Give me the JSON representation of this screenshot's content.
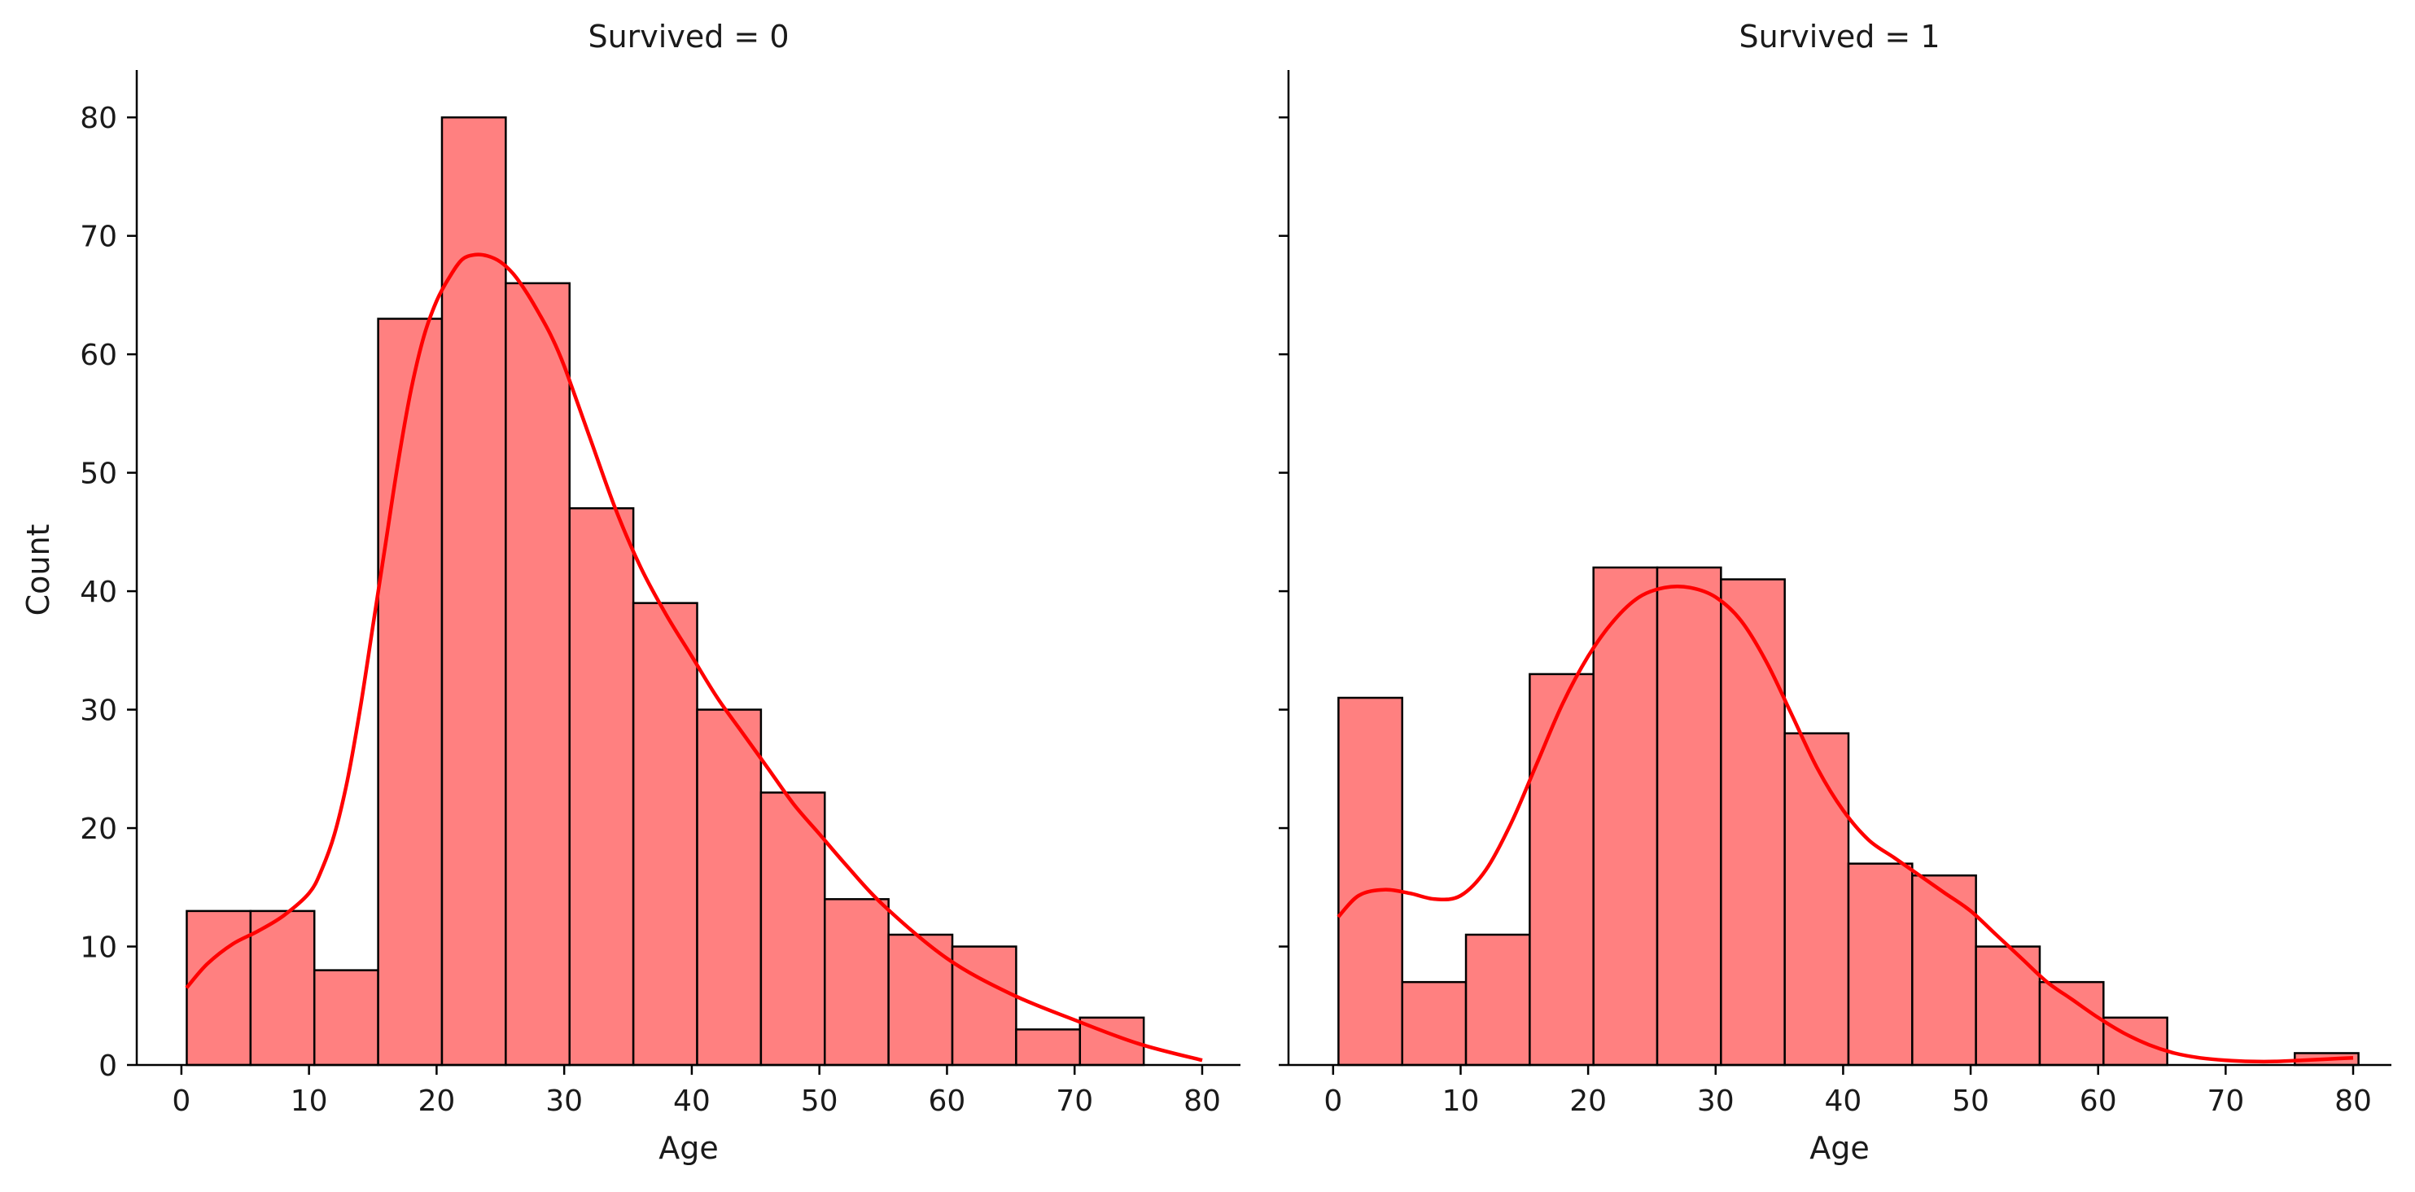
{
  "chart_data": [
    {
      "type": "bar",
      "title": "Survived = 0",
      "xlabel": "Age",
      "ylabel": "Count",
      "xlim": [
        -3.5,
        83
      ],
      "ylim": [
        0,
        84
      ],
      "xticks": [
        0,
        10,
        20,
        30,
        40,
        50,
        60,
        70,
        80
      ],
      "yticks": [
        0,
        10,
        20,
        30,
        40,
        50,
        60,
        70,
        80
      ],
      "bins": [
        [
          0.42,
          5.42
        ],
        [
          5.42,
          10.42
        ],
        [
          10.42,
          15.42
        ],
        [
          15.42,
          20.42
        ],
        [
          20.42,
          25.42
        ],
        [
          25.42,
          30.42
        ],
        [
          30.42,
          35.42
        ],
        [
          35.42,
          40.42
        ],
        [
          40.42,
          45.42
        ],
        [
          45.42,
          50.42
        ],
        [
          50.42,
          55.42
        ],
        [
          55.42,
          60.42
        ],
        [
          60.42,
          65.42
        ],
        [
          65.42,
          70.42
        ],
        [
          70.42,
          75.42
        ]
      ],
      "values": [
        13,
        13,
        8,
        63,
        80,
        66,
        47,
        39,
        30,
        23,
        14,
        11,
        10,
        3,
        4
      ],
      "kde": {
        "x": [
          0.4,
          2,
          4,
          6,
          8,
          10,
          11,
          12,
          13,
          14,
          15,
          16,
          17,
          18,
          19,
          20,
          21,
          22,
          23,
          24,
          25,
          26,
          27,
          28,
          29,
          30,
          32,
          34,
          36,
          38,
          40,
          42,
          44,
          46,
          48,
          50,
          52,
          55,
          60,
          65,
          70,
          75,
          80
        ],
        "y": [
          6.5,
          8.5,
          10.2,
          11.3,
          12.6,
          14.5,
          16.5,
          19.5,
          24,
          30,
          37,
          44,
          51,
          57,
          61.5,
          64.5,
          66.5,
          68,
          68.4,
          68.3,
          67.8,
          66.8,
          65.3,
          63.5,
          61.5,
          59,
          53,
          47,
          42,
          38,
          34.5,
          31,
          28,
          25,
          22,
          19.5,
          17,
          13.5,
          9,
          6,
          3.8,
          1.8,
          0.4
        ]
      }
    },
    {
      "type": "bar",
      "title": "Survived = 1",
      "xlabel": "Age",
      "ylabel": "",
      "xlim": [
        -3.5,
        83
      ],
      "ylim": [
        0,
        84
      ],
      "xticks": [
        0,
        10,
        20,
        30,
        40,
        50,
        60,
        70,
        80
      ],
      "yticks": [
        0,
        10,
        20,
        30,
        40,
        50,
        60,
        70,
        80
      ],
      "bins": [
        [
          0.42,
          5.42
        ],
        [
          5.42,
          10.42
        ],
        [
          10.42,
          15.42
        ],
        [
          15.42,
          20.42
        ],
        [
          20.42,
          25.42
        ],
        [
          25.42,
          30.42
        ],
        [
          30.42,
          35.42
        ],
        [
          35.42,
          40.42
        ],
        [
          40.42,
          45.42
        ],
        [
          45.42,
          50.42
        ],
        [
          50.42,
          55.42
        ],
        [
          55.42,
          60.42
        ],
        [
          60.42,
          65.42
        ],
        [
          65.42,
          70.42
        ],
        [
          70.42,
          75.42
        ],
        [
          75.42,
          80.42
        ]
      ],
      "values": [
        31,
        7,
        11,
        33,
        42,
        42,
        41,
        28,
        17,
        16,
        10,
        7,
        4,
        0,
        0,
        1
      ],
      "kde": {
        "x": [
          0.4,
          2,
          4,
          6,
          8,
          10,
          12,
          14,
          16,
          18,
          20,
          22,
          24,
          26,
          28,
          30,
          32,
          34,
          36,
          38,
          40,
          42,
          44,
          46,
          48,
          50,
          52,
          54,
          56,
          58,
          60,
          62,
          64,
          66,
          68,
          70,
          72,
          74,
          76,
          78,
          80
        ],
        "y": [
          12.5,
          14.3,
          14.8,
          14.5,
          14,
          14.3,
          16.5,
          20.5,
          25.5,
          30.5,
          34.5,
          37.5,
          39.5,
          40.3,
          40.3,
          39.5,
          37.5,
          34,
          29.5,
          25,
          21.5,
          19,
          17.5,
          16,
          14.5,
          13,
          11,
          9,
          7,
          5.5,
          4,
          2.7,
          1.7,
          1,
          0.6,
          0.4,
          0.3,
          0.3,
          0.4,
          0.5,
          0.6
        ]
      }
    }
  ],
  "colors": {
    "bar_fill": "#ff8080",
    "bar_edge": "#000000",
    "kde_line": "#ff0000",
    "axis": "#000000"
  }
}
